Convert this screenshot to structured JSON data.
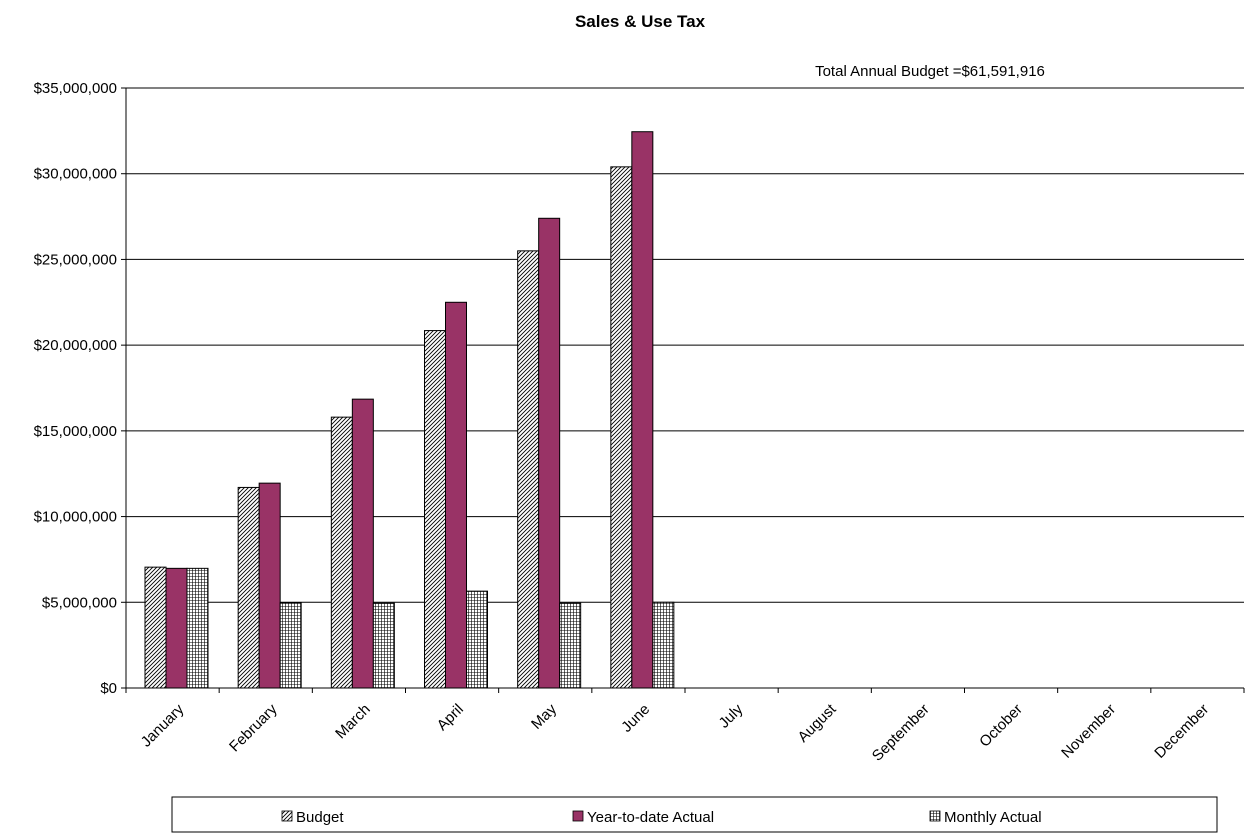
{
  "chart_data": {
    "type": "bar",
    "title": "Sales & Use Tax",
    "annotation": "Total Annual Budget  =$61,591,916",
    "categories": [
      "January",
      "February",
      "March",
      "April",
      "May",
      "June",
      "July",
      "August",
      "September",
      "October",
      "November",
      "December"
    ],
    "series": [
      {
        "name": "Budget",
        "values": [
          7050000,
          11700000,
          15800000,
          20850000,
          25500000,
          30400000,
          null,
          null,
          null,
          null,
          null,
          null
        ]
      },
      {
        "name": "Year-to-date Actual",
        "values": [
          6980000,
          11950000,
          16850000,
          22500000,
          27400000,
          32450000,
          null,
          null,
          null,
          null,
          null,
          null
        ]
      },
      {
        "name": "Monthly Actual",
        "values": [
          6980000,
          4970000,
          4950000,
          5650000,
          4950000,
          5000000,
          null,
          null,
          null,
          null,
          null,
          null
        ]
      }
    ],
    "y_ticks": [
      "$0",
      "$5,000,000",
      "$10,000,000",
      "$15,000,000",
      "$20,000,000",
      "$25,000,000",
      "$30,000,000",
      "$35,000,000"
    ],
    "ylim": [
      0,
      35000000
    ],
    "xlabel": "",
    "ylabel": "",
    "grid": true,
    "legend_position": "bottom"
  },
  "colors": {
    "budget_hatch": "#000000",
    "ytd_fill": "#993366",
    "monthly_grid": "#000000",
    "gridline": "#000000"
  }
}
